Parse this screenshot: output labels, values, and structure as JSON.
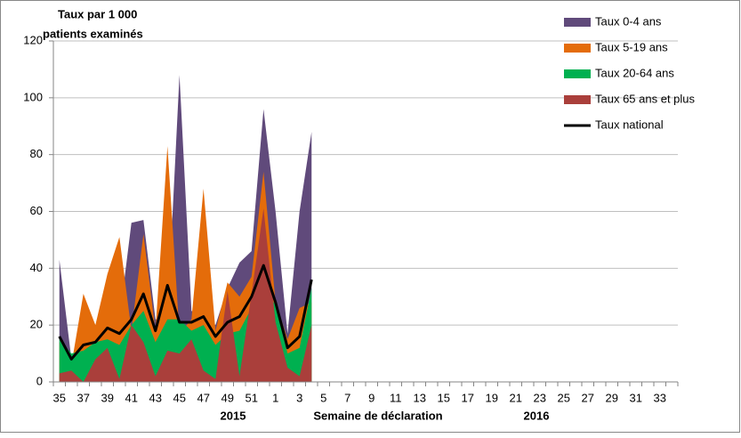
{
  "chart_data": {
    "type": "area",
    "y_label": [
      "Taux par 1 000",
      "patients examinés"
    ],
    "annotations": [
      "2015",
      "Semaine de déclaration",
      "2016"
    ],
    "categories": [
      "35",
      null,
      "37",
      null,
      "39",
      null,
      "41",
      null,
      "43",
      null,
      "45",
      null,
      "47",
      null,
      "49",
      null,
      "51",
      null,
      "1",
      null,
      "3",
      null,
      "5",
      null,
      "7",
      null,
      "9",
      null,
      "11",
      null,
      "13",
      null,
      "15",
      null,
      "17",
      null,
      "19",
      null,
      "21",
      null,
      "23",
      null,
      "25",
      null,
      "27",
      null,
      "29",
      null,
      "31",
      null,
      "33",
      null
    ],
    "ylim": [
      0,
      120
    ],
    "yticks": [
      0,
      20,
      40,
      60,
      80,
      100,
      120
    ],
    "grid": true,
    "legend": "top-right",
    "series": [
      {
        "name": "Taux 0-4 ans",
        "color": "#604a7b",
        "kind": "area",
        "values": [
          43,
          8,
          20,
          18,
          15,
          22,
          56,
          57,
          22,
          23,
          108,
          25,
          23,
          20,
          33,
          42,
          46,
          96,
          60,
          17,
          60,
          88,
          null,
          null,
          null,
          null,
          null,
          null,
          null,
          null,
          null,
          null,
          null,
          null,
          null,
          null,
          null,
          null,
          null,
          null,
          null,
          null,
          null,
          null,
          null,
          null,
          null,
          null,
          null,
          null,
          null,
          null
        ]
      },
      {
        "name": "Taux 5-19 ans",
        "color": "#e46c0a",
        "kind": "area",
        "values": [
          14,
          6,
          31,
          20,
          38,
          51,
          18,
          52,
          18,
          83,
          17,
          22,
          68,
          18,
          35,
          30,
          37,
          74,
          28,
          15,
          26,
          28,
          null,
          null,
          null,
          null,
          null,
          null,
          null,
          null,
          null,
          null,
          null,
          null,
          null,
          null,
          null,
          null,
          null,
          null,
          null,
          null,
          null,
          null,
          null,
          null,
          null,
          null,
          null,
          null,
          null,
          null
        ]
      },
      {
        "name": "Taux 20-64 ans",
        "color": "#00b050",
        "kind": "area",
        "values": [
          15,
          10,
          11,
          14,
          15,
          13,
          20,
          25,
          14,
          22,
          22,
          18,
          20,
          13,
          17,
          18,
          26,
          34,
          27,
          10,
          12,
          33,
          null,
          null,
          null,
          null,
          null,
          null,
          null,
          null,
          null,
          null,
          null,
          null,
          null,
          null,
          null,
          null,
          null,
          null,
          null,
          null,
          null,
          null,
          null,
          null,
          null,
          null,
          null,
          null,
          null,
          null
        ]
      },
      {
        "name": "Taux 65 ans et plus",
        "color": "#aa3f3b",
        "kind": "area",
        "values": [
          3,
          4,
          0,
          8,
          12,
          1,
          20,
          14,
          2,
          11,
          10,
          15,
          4,
          1,
          32,
          2,
          31,
          61,
          21,
          5,
          2,
          20,
          null,
          null,
          null,
          null,
          null,
          null,
          null,
          null,
          null,
          null,
          null,
          null,
          null,
          null,
          null,
          null,
          null,
          null,
          null,
          null,
          null,
          null,
          null,
          null,
          null,
          null,
          null,
          null,
          null,
          null
        ]
      },
      {
        "name": "Taux national",
        "color": "#000000",
        "kind": "line",
        "values": [
          16,
          8,
          13,
          14,
          19,
          17,
          22,
          31,
          18,
          34,
          21,
          21,
          23,
          16,
          21,
          23,
          30,
          41,
          28,
          12,
          16,
          36,
          null,
          null,
          null,
          null,
          null,
          null,
          null,
          null,
          null,
          null,
          null,
          null,
          null,
          null,
          null,
          null,
          null,
          null,
          null,
          null,
          null,
          null,
          null,
          null,
          null,
          null,
          null,
          null,
          null,
          null
        ]
      }
    ]
  }
}
